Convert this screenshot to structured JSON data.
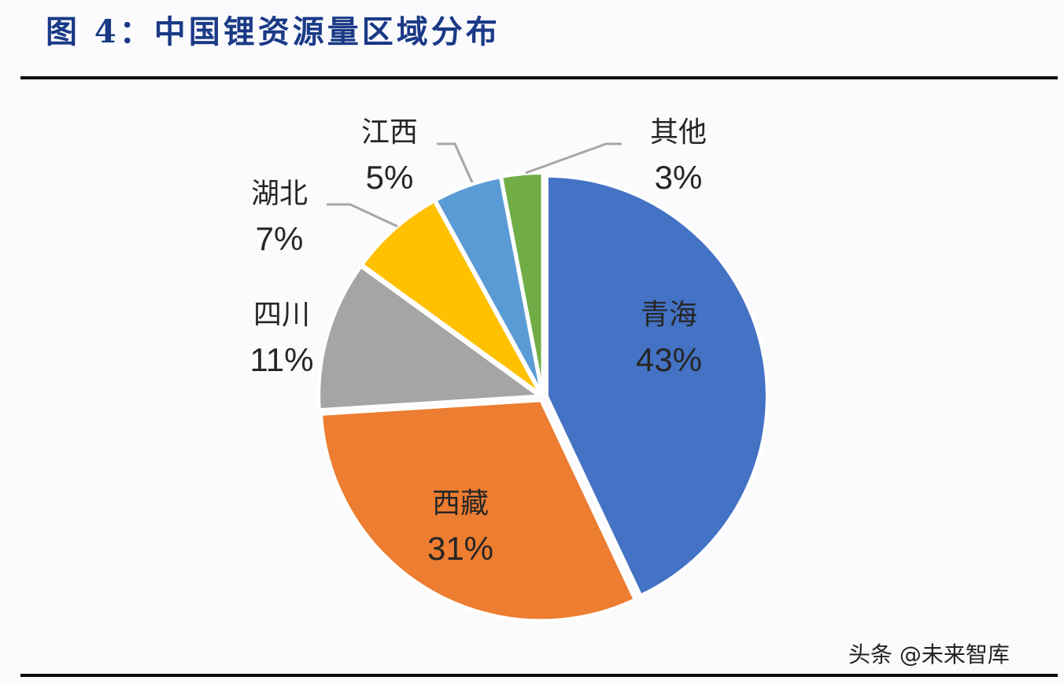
{
  "figure": {
    "title": "图 4：中国锂资源量区域分布",
    "watermark": "头条 @未来智库"
  },
  "chart_data": {
    "type": "pie",
    "title": "中国锂资源量区域分布",
    "categories": [
      "青海",
      "西藏",
      "四川",
      "湖北",
      "江西",
      "其他"
    ],
    "values": [
      43,
      31,
      11,
      7,
      5,
      3
    ],
    "unit": "%",
    "colors": [
      "#4472c4",
      "#ed7d31",
      "#a5a5a5",
      "#ffc000",
      "#5b9bd5",
      "#70ad47"
    ],
    "start_angle": "12 o'clock",
    "direction": "clockwise",
    "labels": [
      {
        "name": "青海",
        "pct": "43%"
      },
      {
        "name": "西藏",
        "pct": "31%"
      },
      {
        "name": "四川",
        "pct": "11%"
      },
      {
        "name": "湖北",
        "pct": "7%"
      },
      {
        "name": "江西",
        "pct": "5%"
      },
      {
        "name": "其他",
        "pct": "3%"
      }
    ],
    "legend": "none (data labels with leader lines)"
  }
}
